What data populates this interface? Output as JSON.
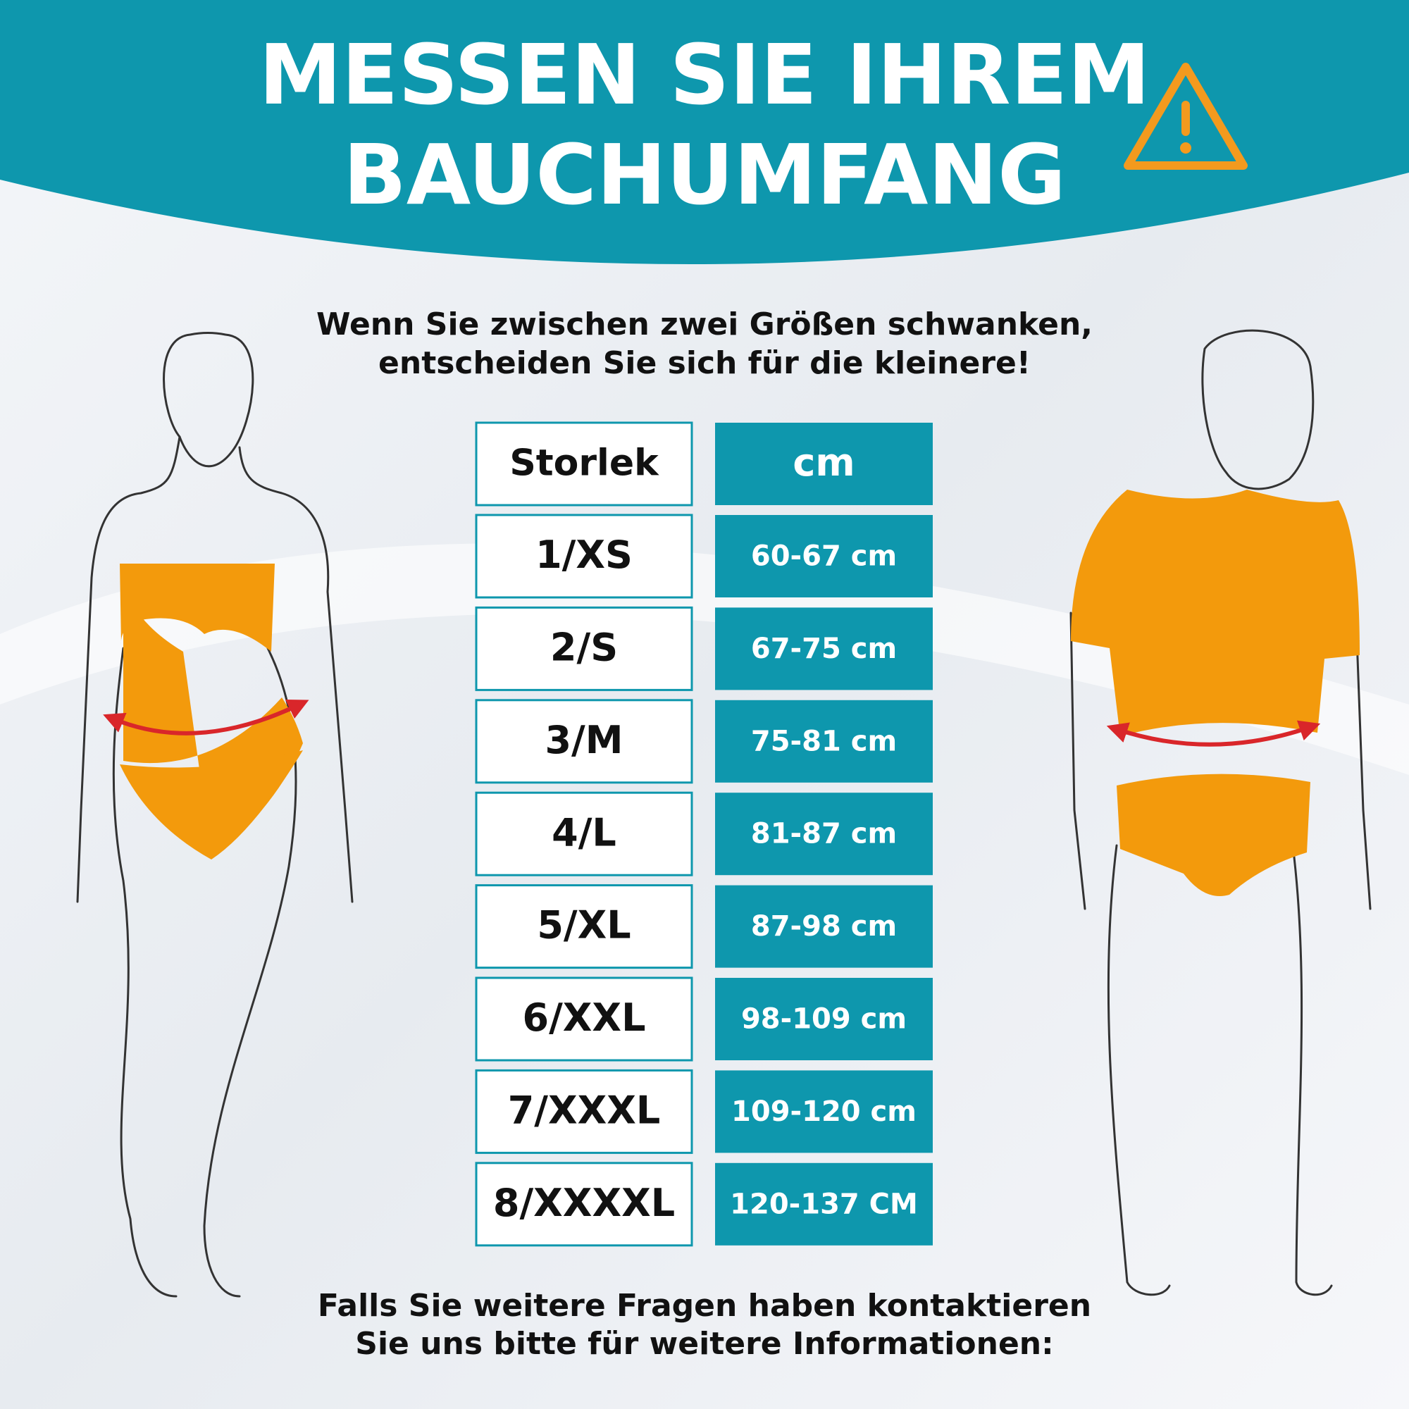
{
  "header": {
    "title_lines": [
      "MESSEN SIE IHREM",
      "BAUCHUMFANG"
    ]
  },
  "subtitle_lines": [
    "Wenn Sie zwischen zwei Größen schwanken,",
    "entscheiden Sie sich für die kleinere!"
  ],
  "table": {
    "columns": [
      "Storlek",
      "cm"
    ],
    "rows": [
      [
        "1/XS",
        "60-67 cm"
      ],
      [
        "2/S",
        "67-75 cm"
      ],
      [
        "3/M",
        "75-81 cm"
      ],
      [
        "4/L",
        "81-87 cm"
      ],
      [
        "5/XL",
        "87-98 cm"
      ],
      [
        "6/XXL",
        "98-109 cm"
      ],
      [
        "7/XXXL",
        "109-120 cm"
      ],
      [
        "8/XXXXL",
        "120-137 CM"
      ]
    ]
  },
  "footer_lines": [
    "Falls Sie weitere Fragen haben kontaktieren",
    "Sie uns bitte für weitere Informationen:"
  ]
}
